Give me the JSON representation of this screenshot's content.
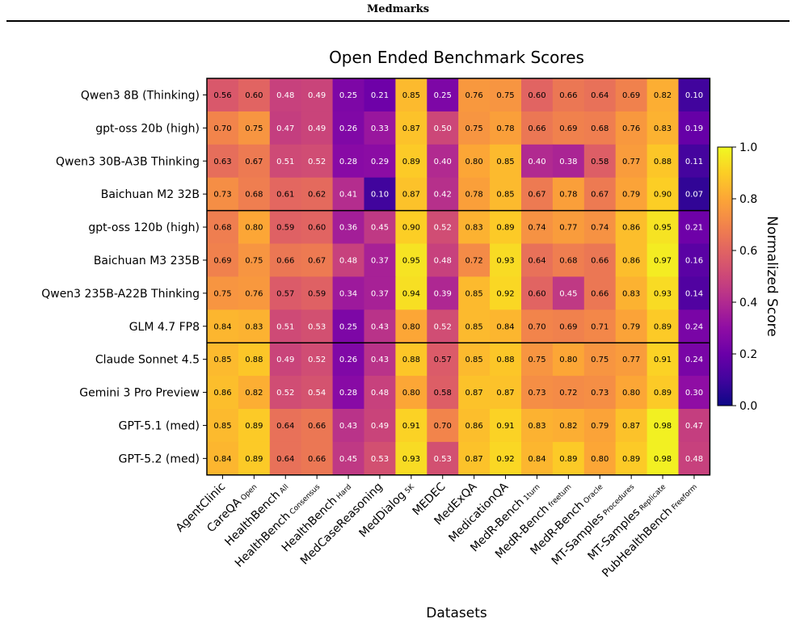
{
  "header": {
    "title": "Medmarks"
  },
  "chart_data": {
    "type": "heatmap",
    "title": "Open Ended Benchmark Scores",
    "xlabel": "Datasets",
    "ylabel": "",
    "colorbar_label": "Normalized Score",
    "colormap": "plasma",
    "vmin": 0.0,
    "vmax": 1.0,
    "colorbar_ticks": [
      "0.0",
      "0.2",
      "0.4",
      "0.6",
      "0.8",
      "1.0"
    ],
    "row_groups": [
      4,
      4,
      4
    ],
    "columns": [
      {
        "name": "AgentClinic",
        "sub": ""
      },
      {
        "name": "CareQA",
        "sub": "Open"
      },
      {
        "name": "HealthBench",
        "sub": "All"
      },
      {
        "name": "HealthBench",
        "sub": "Consensus"
      },
      {
        "name": "HealthBench",
        "sub": "Hard"
      },
      {
        "name": "MedCaseReasoning",
        "sub": ""
      },
      {
        "name": "MedDialog",
        "sub": "5K"
      },
      {
        "name": "MEDEC",
        "sub": ""
      },
      {
        "name": "MedExQA",
        "sub": ""
      },
      {
        "name": "MedicationQA",
        "sub": ""
      },
      {
        "name": "MedR-Bench",
        "sub": "1turn"
      },
      {
        "name": "MedR-Bench",
        "sub": "freetum"
      },
      {
        "name": "MedR-Bench",
        "sub": "Oracle"
      },
      {
        "name": "MT-Samples",
        "sub": "Procedures"
      },
      {
        "name": "MT-Samples",
        "sub": "Replicate"
      },
      {
        "name": "PubHealthBench",
        "sub": "Freeform"
      }
    ],
    "rows": [
      {
        "name": "Qwen3 8B (Thinking)",
        "values": [
          0.56,
          0.6,
          0.48,
          0.49,
          0.25,
          0.21,
          0.85,
          0.25,
          0.76,
          0.75,
          0.6,
          0.66,
          0.64,
          0.69,
          0.82,
          0.1
        ]
      },
      {
        "name": "gpt-oss 20b (high)",
        "values": [
          0.7,
          0.75,
          0.47,
          0.49,
          0.26,
          0.33,
          0.87,
          0.5,
          0.75,
          0.78,
          0.66,
          0.69,
          0.68,
          0.76,
          0.83,
          0.19
        ]
      },
      {
        "name": "Qwen3 30B-A3B Thinking",
        "values": [
          0.63,
          0.67,
          0.51,
          0.52,
          0.28,
          0.29,
          0.89,
          0.4,
          0.8,
          0.85,
          0.4,
          0.38,
          0.58,
          0.77,
          0.88,
          0.11
        ]
      },
      {
        "name": "Baichuan M2 32B",
        "values": [
          0.73,
          0.68,
          0.61,
          0.62,
          0.41,
          0.1,
          0.87,
          0.42,
          0.78,
          0.85,
          0.67,
          0.78,
          0.67,
          0.79,
          0.9,
          0.07
        ]
      },
      {
        "name": "gpt-oss 120b (high)",
        "values": [
          0.68,
          0.8,
          0.59,
          0.6,
          0.36,
          0.45,
          0.9,
          0.52,
          0.83,
          0.89,
          0.74,
          0.77,
          0.74,
          0.86,
          0.95,
          0.21
        ]
      },
      {
        "name": "Baichuan M3 235B",
        "values": [
          0.69,
          0.75,
          0.66,
          0.67,
          0.48,
          0.37,
          0.95,
          0.48,
          0.72,
          0.93,
          0.64,
          0.68,
          0.66,
          0.86,
          0.97,
          0.16
        ]
      },
      {
        "name": "Qwen3 235B-A22B Thinking",
        "values": [
          0.75,
          0.76,
          0.57,
          0.59,
          0.34,
          0.37,
          0.94,
          0.39,
          0.85,
          0.92,
          0.6,
          0.45,
          0.66,
          0.83,
          0.93,
          0.14
        ]
      },
      {
        "name": "GLM 4.7 FP8",
        "values": [
          0.84,
          0.83,
          0.51,
          0.53,
          0.25,
          0.43,
          0.8,
          0.52,
          0.85,
          0.84,
          0.7,
          0.69,
          0.71,
          0.79,
          0.89,
          0.24
        ]
      },
      {
        "name": "Claude Sonnet 4.5",
        "values": [
          0.85,
          0.88,
          0.49,
          0.52,
          0.26,
          0.43,
          0.88,
          0.57,
          0.85,
          0.88,
          0.75,
          0.8,
          0.75,
          0.77,
          0.91,
          0.24
        ]
      },
      {
        "name": "Gemini 3 Pro Preview",
        "values": [
          0.86,
          0.82,
          0.52,
          0.54,
          0.28,
          0.48,
          0.8,
          0.58,
          0.87,
          0.87,
          0.73,
          0.72,
          0.73,
          0.8,
          0.89,
          0.3
        ]
      },
      {
        "name": "GPT-5.1 (med)",
        "values": [
          0.85,
          0.89,
          0.64,
          0.66,
          0.43,
          0.49,
          0.91,
          0.7,
          0.86,
          0.91,
          0.83,
          0.82,
          0.79,
          0.87,
          0.98,
          0.47
        ]
      },
      {
        "name": "GPT-5.2 (med)",
        "values": [
          0.84,
          0.89,
          0.64,
          0.66,
          0.45,
          0.53,
          0.93,
          0.53,
          0.87,
          0.92,
          0.84,
          0.89,
          0.8,
          0.89,
          0.98,
          0.48
        ]
      }
    ]
  }
}
